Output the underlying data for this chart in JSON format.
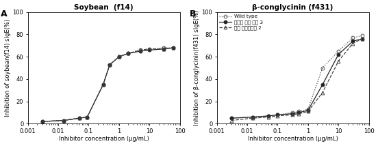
{
  "panel_A": {
    "title": "Soybean  (f14)",
    "ylabel": "Inhibition of soybean(f14) sIgE(%)",
    "xlabel": "Inhibitor concentration (µg/mL)",
    "label": "A",
    "series": [
      {
        "name": "Wild type",
        "x": [
          0.003,
          0.015,
          0.05,
          0.09,
          0.3,
          0.5,
          1,
          2,
          5,
          10,
          30,
          60
        ],
        "y": [
          2,
          3,
          5,
          6,
          35,
          53,
          60,
          63,
          66,
          67,
          68,
          68
        ],
        "linestyle": "dotted",
        "marker": "o",
        "fillstyle": "none",
        "color": "#444444"
      },
      {
        "name": "유전자 발현 억제 3",
        "x": [
          0.003,
          0.015,
          0.05,
          0.09,
          0.3,
          0.5,
          1,
          2,
          5,
          10,
          30,
          60
        ],
        "y": [
          2,
          3,
          5,
          6,
          35,
          53,
          60,
          63,
          65,
          66,
          67,
          68
        ],
        "linestyle": "solid",
        "marker": "o",
        "fillstyle": "full",
        "color": "#222222"
      },
      {
        "name": "자연 돌연변이체 2",
        "x": [
          0.003,
          0.015,
          0.05,
          0.09,
          0.3,
          0.5,
          1,
          2,
          5,
          10,
          30,
          60
        ],
        "y": [
          2,
          3,
          5,
          6,
          35,
          53,
          60,
          63,
          66,
          67,
          67,
          68
        ],
        "linestyle": "dashed",
        "marker": "^",
        "fillstyle": "none",
        "color": "#444444"
      }
    ],
    "xlim": [
      0.001,
      100
    ],
    "ylim": [
      0,
      100
    ],
    "yticks": [
      0,
      20,
      40,
      60,
      80,
      100
    ]
  },
  "panel_B": {
    "title": "β-conglycinin (f431)",
    "ylabel": "Inhibition of β-conglycinin(f431) sIgE(%)",
    "xlabel": "Inhibitor concentration (µg/mL)",
    "label": "B",
    "series": [
      {
        "name": "Wild type",
        "x": [
          0.003,
          0.015,
          0.05,
          0.1,
          0.3,
          0.5,
          1,
          3,
          10,
          30,
          60
        ],
        "y": [
          5,
          6,
          7,
          8,
          10,
          11,
          13,
          50,
          65,
          77,
          79
        ],
        "linestyle": "dotted",
        "marker": "o",
        "fillstyle": "none",
        "color": "#555555"
      },
      {
        "name": "유전자 발현 억제 3",
        "x": [
          0.003,
          0.015,
          0.05,
          0.1,
          0.3,
          0.5,
          1,
          3,
          10,
          30,
          60
        ],
        "y": [
          5,
          6,
          7,
          8,
          9,
          10,
          12,
          35,
          62,
          74,
          76
        ],
        "linestyle": "solid",
        "marker": "o",
        "fillstyle": "full",
        "color": "#222222"
      },
      {
        "name": "자연 돌연변이체 2",
        "x": [
          0.003,
          0.015,
          0.05,
          0.1,
          0.3,
          0.5,
          1,
          3,
          10,
          30,
          60
        ],
        "y": [
          3,
          5,
          6,
          7,
          8,
          9,
          11,
          28,
          56,
          72,
          76
        ],
        "linestyle": "dashed",
        "marker": "^",
        "fillstyle": "none",
        "color": "#444444"
      }
    ],
    "xlim": [
      0.001,
      100
    ],
    "ylim": [
      0,
      100
    ],
    "yticks": [
      0,
      20,
      40,
      60,
      80,
      100
    ],
    "legend_loc": "upper left"
  },
  "bg_color": "#ffffff",
  "font_size": 6,
  "title_fontsize": 7.5,
  "axis_label_fontsize": 6,
  "label_fontsize": 9
}
